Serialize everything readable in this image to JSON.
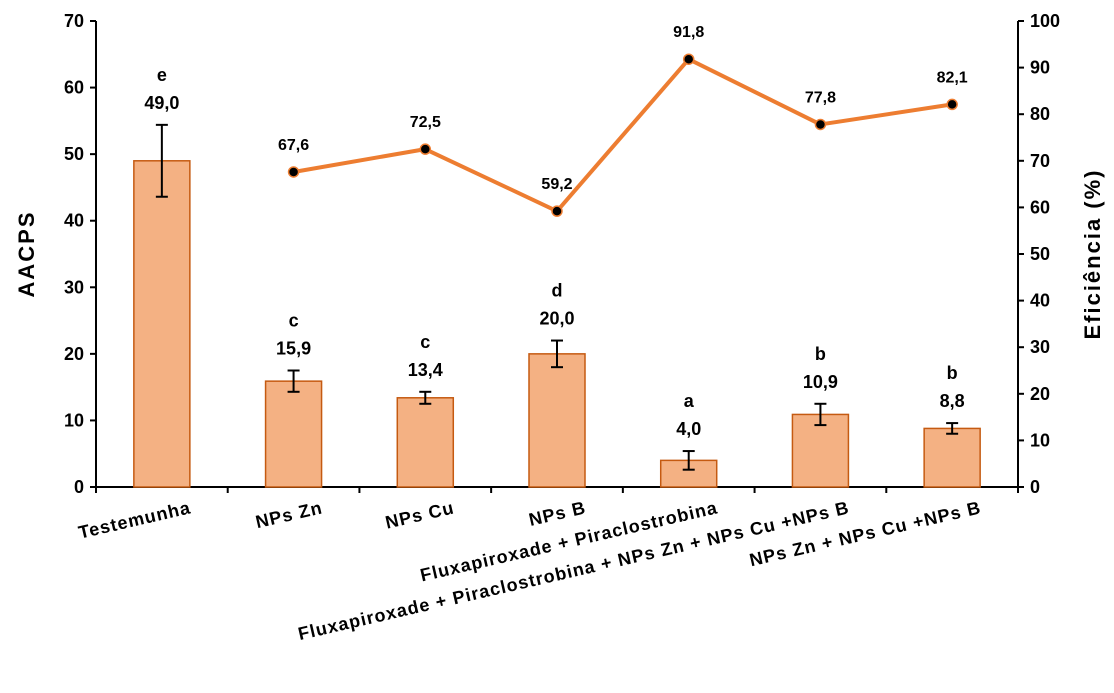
{
  "chart_data": {
    "type": "bar",
    "categories": [
      "Testemunha",
      "NPs Zn",
      "NPs Cu",
      "NPs B",
      "Fluxapiroxade + Piraclostrobina",
      "Fluxapiroxade + Piraclostrobina + NPs Zn + NPs Cu +NPs B",
      "NPs Zn + NPs Cu +NPs B"
    ],
    "category_labels_display": [
      "Testemunha",
      "NPs Zn",
      "NPs Cu",
      "NPs B",
      "Fluxapiroxade  + Piraclostrobina",
      "Fluxapiroxade  + Piraclostrobina  + NPs Zn + NPs Cu +NPs B",
      "NPs Zn + NPs Cu +NPs B"
    ],
    "bars": {
      "values": [
        49.0,
        15.9,
        13.4,
        20.0,
        4.0,
        10.9,
        8.8
      ],
      "value_labels": [
        "49,0",
        "15,9",
        "13,4",
        "20,0",
        "4,0",
        "10,9",
        "8,8"
      ],
      "letters": [
        "e",
        "c",
        "c",
        "d",
        "a",
        "b",
        "b"
      ],
      "error": [
        5.4,
        1.6,
        0.9,
        2.0,
        1.4,
        1.6,
        0.8
      ],
      "color": "#F4B183",
      "edge_color": "#C55A11"
    },
    "line": {
      "values": [
        null,
        67.6,
        72.5,
        59.2,
        91.8,
        77.8,
        82.1
      ],
      "value_labels": [
        "",
        "67,6",
        "72,5",
        "59,2",
        "91,8",
        "77,8",
        "82,1"
      ],
      "color": "#ED7D31",
      "marker_color": "#000000"
    },
    "ylabel": "AACPS",
    "y2label": "Eficiência (%)",
    "ylim": [
      0,
      70
    ],
    "y2lim": [
      0,
      100
    ],
    "yticks": [
      0,
      10,
      20,
      30,
      40,
      50,
      60,
      70
    ],
    "y2ticks": [
      0,
      10,
      20,
      30,
      40,
      50,
      60,
      70,
      80,
      90,
      100
    ]
  }
}
